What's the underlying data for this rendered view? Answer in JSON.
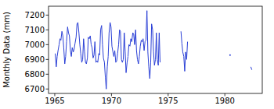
{
  "chart_data": {
    "type": "line",
    "ylabel": "Monthly Data (mm)",
    "color": "#2a3fd6",
    "x": [
      1965.04,
      1965.13,
      1965.21,
      1965.29,
      1965.38,
      1965.46,
      1965.54,
      1965.63,
      1965.71,
      1965.79,
      1965.88,
      1965.96,
      1966.04,
      1966.13,
      1966.21,
      1966.29,
      1966.38,
      1966.46,
      1966.54,
      1966.63,
      1966.71,
      1966.79,
      1966.88,
      1966.96,
      1967.04,
      1967.13,
      1967.21,
      1967.29,
      1967.38,
      1967.46,
      1967.54,
      1967.63,
      1967.71,
      1967.79,
      1967.88,
      1967.96,
      1968.04,
      1968.13,
      1968.21,
      1968.29,
      1968.38,
      1968.46,
      1968.54,
      1968.63,
      1968.71,
      1968.79,
      1968.88,
      1968.96,
      1969.04,
      1969.13,
      1969.21,
      1969.29,
      1969.38,
      1969.46,
      1969.54,
      1969.63,
      1969.71,
      1969.79,
      1969.88,
      1969.96,
      1970.04,
      1970.13,
      1970.21,
      1970.29,
      1970.38,
      1970.46,
      1970.54,
      1970.63,
      1970.71,
      1970.79,
      1970.88,
      1970.96,
      1971.04,
      1971.13,
      1971.21,
      1971.29,
      1971.38,
      1971.46,
      1971.54,
      1971.63,
      1971.71,
      1971.79,
      1971.88,
      1971.96,
      1972.04,
      1972.13,
      1972.21,
      1972.29,
      1972.38,
      1972.46,
      1972.54,
      1972.63,
      1972.71,
      1972.79,
      1972.88,
      1972.96,
      1973.04,
      1973.13,
      1973.21,
      1973.29,
      1973.38,
      1973.46,
      1973.54,
      1973.63,
      1973.71,
      1973.79,
      1973.88,
      1973.96,
      1974.04,
      1974.13,
      1974.21,
      1974.29,
      1975.0,
      1976.13,
      1976.21,
      1976.29,
      1976.38,
      1976.46,
      1976.54,
      1976.63,
      1976.71,
      1978.0,
      1980.46,
      1981.0,
      1982.29,
      1982.38
    ],
    "values": [
      6940,
      6850,
      6920,
      6960,
      7000,
      7040,
      7030,
      7090,
      7060,
      6980,
      6870,
      6920,
      7020,
      7120,
      7080,
      7060,
      6960,
      6920,
      6980,
      6950,
      6970,
      7010,
      7050,
      7140,
      7150,
      7080,
      7000,
      6940,
      6880,
      6900,
      7040,
      6950,
      6880,
      6870,
      6910,
      7050,
      7040,
      7060,
      7000,
      6980,
      6910,
      6930,
      7020,
      6880,
      6890,
      6880,
      6940,
      6930,
      7100,
      7130,
      7000,
      6910,
      6880,
      6780,
      6700,
      6850,
      6920,
      7080,
      7150,
      7120,
      6990,
      6950,
      6920,
      6960,
      6880,
      6890,
      6940,
      7000,
      7100,
      7090,
      6900,
      6880,
      6900,
      7080,
      6950,
      6810,
      6880,
      6920,
      7000,
      6990,
      7040,
      7020,
      7080,
      7070,
      7000,
      7100,
      6960,
      6900,
      6870,
      6920,
      6990,
      7030,
      7020,
      7040,
      6960,
      7020,
      7030,
      7230,
      6950,
      6850,
      6770,
      6880,
      7140,
      7100,
      6950,
      6860,
      6900,
      7080,
      6900,
      6860,
      7080,
      6880,
      null,
      7090,
      7010,
      6950,
      6920,
      6820,
      6950,
      6900,
      7020,
      null,
      6930,
      null,
      6850,
      6830
    ],
    "xlim": [
      1964.45,
      1983.3
    ],
    "ylim": [
      6670,
      7260
    ],
    "xticks": [
      1965,
      1970,
      1975,
      1980
    ],
    "yticks": [
      6700,
      6800,
      6900,
      7000,
      7100,
      7200
    ]
  }
}
